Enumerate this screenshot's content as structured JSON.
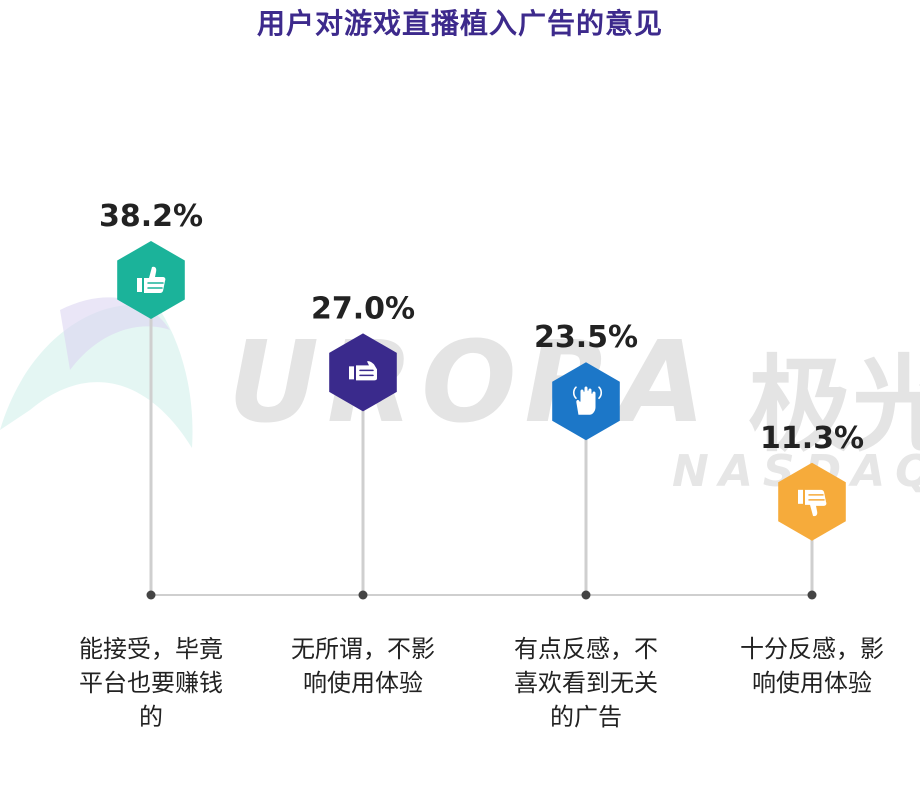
{
  "chart_data": {
    "type": "bar",
    "title": "用户对游戏直播植入广告的意见",
    "categories": [
      "能接受，毕竟平台也要赚钱的",
      "无所谓，不影响使用体验",
      "有点反感，不喜欢看到无关的广告",
      "十分反感，影响使用体验"
    ],
    "category_lines": [
      [
        "能接受，毕竟",
        "平台也要赚钱",
        "的"
      ],
      [
        "无所谓，不影",
        "响使用体验"
      ],
      [
        "有点反感，不",
        "喜欢看到无关",
        "的广告"
      ],
      [
        "十分反感，影",
        "响使用体验"
      ]
    ],
    "values": [
      38.2,
      27.0,
      23.5,
      11.3
    ],
    "value_labels": [
      "38.2%",
      "27.0%",
      "23.5%",
      "11.3%"
    ],
    "unit": "%",
    "colors": [
      "#1bb39a",
      "#3a2a8c",
      "#1c77c8",
      "#f6ab3b"
    ],
    "icons": [
      "thumbs-up-icon",
      "thumbs-sideways-icon",
      "hand-wave-icon",
      "thumbs-down-icon"
    ],
    "watermark": {
      "logo": "URORA",
      "logo_cn": "极光",
      "sub": "NASDAQ:JG"
    }
  }
}
